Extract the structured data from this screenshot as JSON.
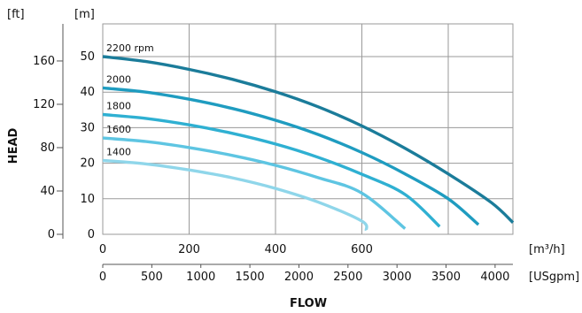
{
  "chart_data": {
    "type": "line",
    "title": "",
    "ylabel": "HEAD",
    "xlabel": "FLOW",
    "x_unit_primary": "[m³/h]",
    "x_unit_secondary": "[USgpm]",
    "y_unit_primary": "[m]",
    "y_unit_secondary": "[ft]",
    "x_ticks_primary": [
      "0",
      "200",
      "400",
      "600"
    ],
    "x_ticks_secondary": [
      "0",
      "500",
      "1000",
      "1500",
      "2000",
      "2500",
      "3000",
      "3500",
      "4000"
    ],
    "y_ticks_primary": [
      "0",
      "10",
      "20",
      "30",
      "40",
      "50"
    ],
    "y_ticks_secondary": [
      "0",
      "40",
      "80",
      "120",
      "160"
    ],
    "xlim": [
      0,
      920
    ],
    "ylim": [
      0,
      50
    ],
    "grid": true,
    "series": [
      {
        "name": "2200 rpm",
        "color": "#1b7c9a",
        "x": [
          0,
          100,
          200,
          300,
          400,
          500,
          600,
          700,
          800,
          900,
          950
        ],
        "y": [
          50,
          48.6,
          46.4,
          43.6,
          40.1,
          35.8,
          30.5,
          24.2,
          17.0,
          8.9,
          3.3
        ]
      },
      {
        "name": "2000",
        "color": "#1f9cc0",
        "x": [
          0,
          100,
          200,
          300,
          400,
          500,
          600,
          700,
          800,
          870
        ],
        "y": [
          41.2,
          40.0,
          38.0,
          35.4,
          32.1,
          28.0,
          23.0,
          17.0,
          10.0,
          2.7
        ]
      },
      {
        "name": "1800",
        "color": "#2fb0d2",
        "x": [
          0,
          100,
          200,
          300,
          400,
          500,
          600,
          700,
          780
        ],
        "y": [
          33.7,
          32.6,
          30.8,
          28.4,
          25.4,
          21.6,
          16.9,
          11.2,
          2.2
        ]
      },
      {
        "name": "1600",
        "color": "#5ec5e2",
        "x": [
          0,
          100,
          200,
          300,
          400,
          500,
          600,
          700
        ],
        "y": [
          27.1,
          26.1,
          24.4,
          22.2,
          19.4,
          15.9,
          11.6,
          1.6
        ]
      },
      {
        "name": "1400",
        "color": "#8fd6ea",
        "x": [
          0,
          100,
          200,
          300,
          400,
          500,
          600,
          610
        ],
        "y": [
          20.8,
          19.8,
          18.1,
          15.9,
          12.9,
          9.0,
          3.7,
          1.1
        ]
      }
    ]
  }
}
